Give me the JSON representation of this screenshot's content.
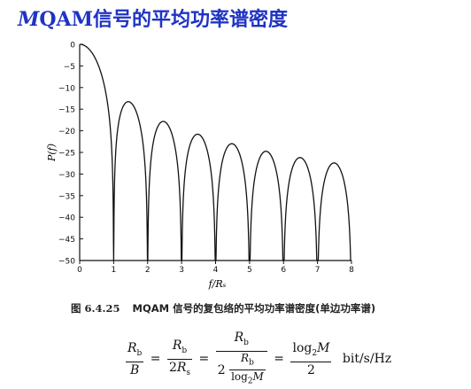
{
  "slide": {
    "title_italic": "M",
    "title_rest": "QAM信号的平均功率谱密度"
  },
  "caption": {
    "figure_number": "图 6.4.25",
    "text": "MQAM 信号的复包络的平均功率谱密度(单边功率谱)"
  },
  "formula": {
    "rb": "R",
    "b_sub": "b",
    "s_sub": "s",
    "B": "B",
    "two": "2",
    "log": "log",
    "log_sub": "2",
    "M": "M",
    "unit": "bit/s/Hz"
  },
  "chart_data": {
    "type": "line",
    "xlabel": "f/Rₛ",
    "ylabel": "P(f)",
    "xlim": [
      0,
      8
    ],
    "ylim": [
      -50,
      0
    ],
    "xticks": [
      0,
      1,
      2,
      3,
      4,
      5,
      6,
      7,
      8
    ],
    "yticks": [
      0,
      -5,
      -10,
      -15,
      -20,
      -25,
      -30,
      -35,
      -40,
      -45,
      -50
    ],
    "grid": false,
    "formula": "10*log10(sinc^2(x))",
    "lobe_peaks": [
      {
        "x": 0,
        "y": 0
      },
      {
        "x": 1.43,
        "y": -13.3
      },
      {
        "x": 2.46,
        "y": -17.8
      },
      {
        "x": 3.47,
        "y": -20.8
      },
      {
        "x": 4.48,
        "y": -23.0
      },
      {
        "x": 5.48,
        "y": -24.7
      },
      {
        "x": 6.49,
        "y": -26.2
      },
      {
        "x": 7.49,
        "y": -27.4
      }
    ],
    "nulls": [
      1,
      2,
      3,
      4,
      5,
      6,
      7,
      8
    ]
  }
}
